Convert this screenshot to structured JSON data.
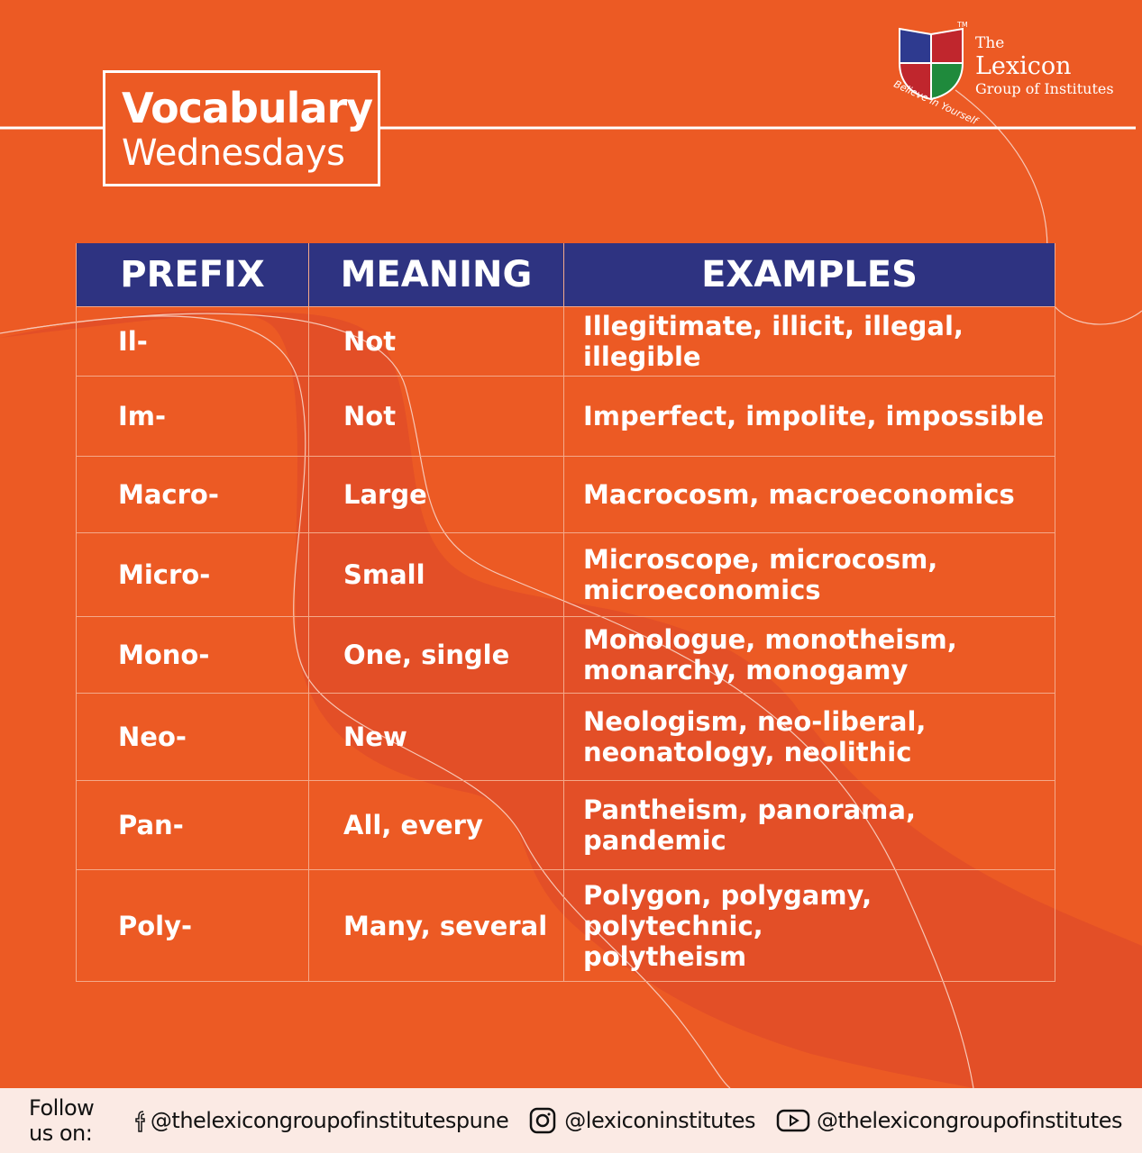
{
  "header": {
    "title": "Vocabulary",
    "subtitle": "Wednesdays"
  },
  "logo": {
    "line1": "The",
    "line2": "Lexicon",
    "line3": "Group of Institutes",
    "tagline": "Believe in Yourself",
    "trademark": "TM"
  },
  "table": {
    "columns": [
      "PREFIX",
      "MEANING",
      "EXAMPLES"
    ],
    "rows": [
      {
        "prefix": "Il-",
        "meaning": "Not",
        "examples": [
          "Illegitimate, illicit, illegal, illegible"
        ]
      },
      {
        "prefix": "Im-",
        "meaning": "Not",
        "examples": [
          "Imperfect, impolite, impossible"
        ]
      },
      {
        "prefix": "Macro-",
        "meaning": "Large",
        "examples": [
          "Macrocosm, macroeconomics"
        ]
      },
      {
        "prefix": "Micro-",
        "meaning": "Small",
        "examples": [
          "Microscope, microcosm,",
          "microeconomics"
        ]
      },
      {
        "prefix": "Mono-",
        "meaning": "One, single",
        "examples": [
          "Monologue, monotheism,",
          "monarchy, monogamy"
        ]
      },
      {
        "prefix": "Neo-",
        "meaning": "New",
        "examples": [
          "Neologism, neo-liberal,",
          "neonatology, neolithic"
        ]
      },
      {
        "prefix": "Pan-",
        "meaning": "All, every",
        "examples": [
          "Pantheism, panorama,",
          "pandemic"
        ]
      },
      {
        "prefix": "Poly-",
        "meaning": "Many, several",
        "examples": [
          "Polygon, polygamy, polytechnic,",
          "polytheism"
        ]
      }
    ]
  },
  "footer": {
    "label": "Follow us on:",
    "facebook": "@thelexicongroupofinstitutespune",
    "instagram": "@lexiconinstitutes",
    "youtube": "@thelexicongroupofinstitutes"
  }
}
